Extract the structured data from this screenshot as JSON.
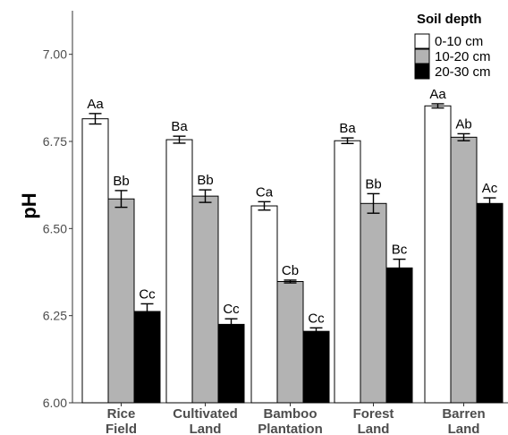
{
  "chart_data": {
    "type": "bar",
    "ylabel": "pH",
    "ylim": [
      6.0,
      7.125
    ],
    "yticks": [
      "6.00",
      "6.25",
      "6.50",
      "6.75",
      "7.00"
    ],
    "grid": false,
    "legend_placement": "top-right",
    "legend_title": "Soil depth",
    "categories": [
      [
        "Rice",
        "Field"
      ],
      [
        "Cultivated",
        "Land"
      ],
      [
        "Bamboo",
        "Plantation"
      ],
      [
        "Forest",
        "Land"
      ],
      [
        "Barren",
        "Land"
      ]
    ],
    "series": [
      {
        "name": "0-10 cm",
        "color": "#ffffff",
        "values": [
          6.815,
          6.755,
          6.565,
          6.752,
          6.852
        ],
        "errors": [
          0.015,
          0.01,
          0.012,
          0.008,
          0.006
        ],
        "labels": [
          "Aa",
          "Ba",
          "Ca",
          "Ba",
          "Aa"
        ]
      },
      {
        "name": "10-20 cm",
        "color": "#b3b3b3",
        "values": [
          6.585,
          6.593,
          6.348,
          6.572,
          6.762
        ],
        "errors": [
          0.024,
          0.018,
          0.004,
          0.028,
          0.01
        ],
        "labels": [
          "Bb",
          "Bb",
          "Cb",
          "Bb",
          "Ab"
        ]
      },
      {
        "name": "20-30 cm",
        "color": "#000000",
        "values": [
          6.262,
          6.225,
          6.205,
          6.387,
          6.572
        ],
        "errors": [
          0.022,
          0.016,
          0.01,
          0.025,
          0.016
        ],
        "labels": [
          "Cc",
          "Cc",
          "Cc",
          "Bc",
          "Ac"
        ]
      }
    ]
  }
}
